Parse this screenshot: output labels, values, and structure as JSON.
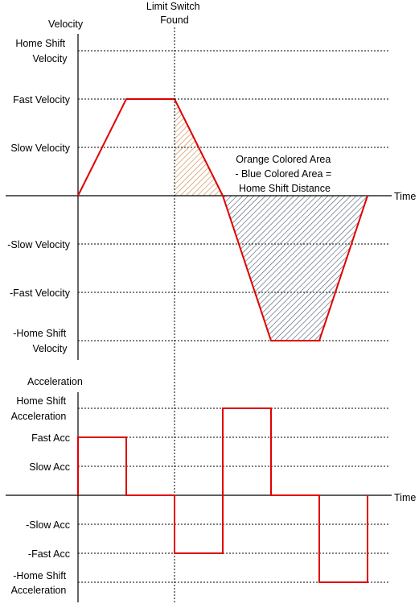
{
  "annotation": {
    "limit_switch": [
      "Limit Switch",
      "Found"
    ],
    "area_note": [
      "Orange Colored Area",
      "- Blue Colored Area =",
      "Home Shift Distance"
    ]
  },
  "velocity_panel": {
    "axis_title": "Velocity",
    "time_label": "Time",
    "levels": {
      "home_shift": [
        "Home Shift",
        "Velocity"
      ],
      "fast": "Fast Velocity",
      "slow": "Slow Velocity",
      "neg_slow": "-Slow Velocity",
      "neg_fast": "-Fast Velocity",
      "neg_home_shift": [
        "-Home Shift",
        "Velocity"
      ]
    }
  },
  "acceleration_panel": {
    "axis_title": "Acceleration",
    "time_label": "Time",
    "levels": {
      "home_shift": [
        "Home Shift",
        "Acceleration"
      ],
      "fast": "Fast Acc",
      "slow": "Slow Acc",
      "neg_slow": "-Slow Acc",
      "neg_fast": "-Fast Acc",
      "neg_home_shift": [
        "-Home Shift",
        "Acceleration"
      ]
    }
  },
  "colors": {
    "trace": "#e00000",
    "orange_area": "#c8823c",
    "blue_area": "#44546a",
    "axis": "#000000"
  }
}
